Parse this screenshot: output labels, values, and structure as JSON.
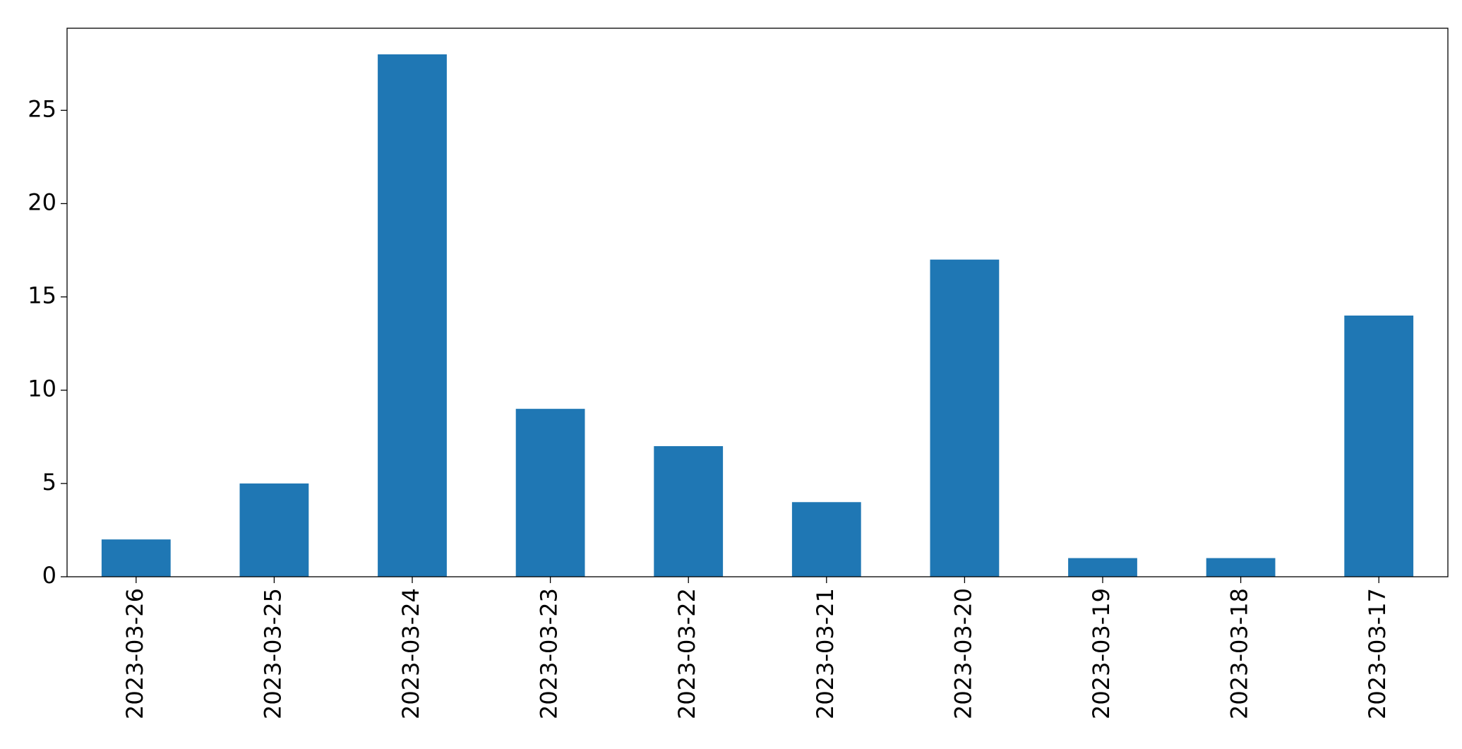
{
  "chart_data": {
    "type": "bar",
    "categories": [
      "2023-03-26",
      "2023-03-25",
      "2023-03-24",
      "2023-03-23",
      "2023-03-22",
      "2023-03-21",
      "2023-03-20",
      "2023-03-19",
      "2023-03-18",
      "2023-03-17"
    ],
    "values": [
      2,
      5,
      28,
      9,
      7,
      4,
      17,
      1,
      1,
      14
    ],
    "color": "#1f77b4",
    "ylim": [
      0,
      29.4
    ],
    "yticks": [
      0,
      5,
      10,
      15,
      20,
      25
    ],
    "grid": false
  }
}
